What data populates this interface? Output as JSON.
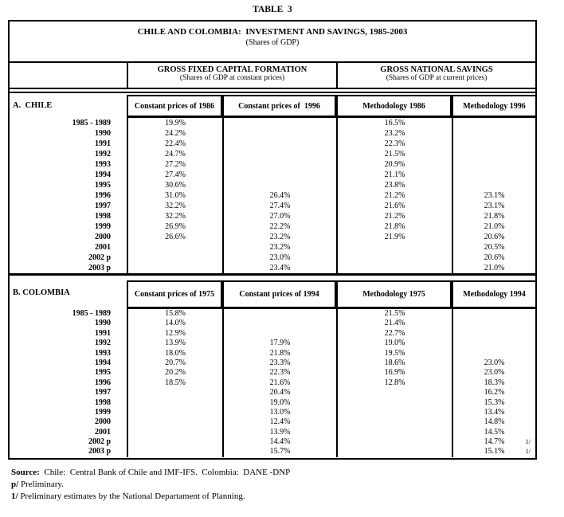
{
  "caption": "TABLE  3",
  "table": {
    "title": "CHILE AND COLOMBIA:  INVESTMENT AND SAVINGS, 1985-2003",
    "subtitle": "(Shares of GDP)",
    "group_headers": [
      {
        "title": "GROSS FIXED CAPITAL FORMATION",
        "subtitle": "(Shares of GDP at constant prices)"
      },
      {
        "title": "GROSS NATIONAL SAVINGS",
        "subtitle": "(Shares of GDP at current prices)"
      }
    ],
    "sections": [
      {
        "label": "A.  CHILE",
        "columns": [
          "Constant prices of 1986",
          "Constant prices of  1996",
          "Methodology 1986",
          "Methodology 1996"
        ],
        "rows": [
          {
            "year": "1985 - 1989",
            "c1": "19.9%",
            "c2": "",
            "c3": "16.5%",
            "c4": "",
            "note": ""
          },
          {
            "year": "1990",
            "c1": "24.2%",
            "c2": "",
            "c3": "23.2%",
            "c4": "",
            "note": ""
          },
          {
            "year": "1991",
            "c1": "22.4%",
            "c2": "",
            "c3": "22.3%",
            "c4": "",
            "note": ""
          },
          {
            "year": "1992",
            "c1": "24.7%",
            "c2": "",
            "c3": "21.5%",
            "c4": "",
            "note": ""
          },
          {
            "year": "1993",
            "c1": "27.2%",
            "c2": "",
            "c3": "20.9%",
            "c4": "",
            "note": ""
          },
          {
            "year": "1994",
            "c1": "27.4%",
            "c2": "",
            "c3": "21.1%",
            "c4": "",
            "note": ""
          },
          {
            "year": "1995",
            "c1": "30.6%",
            "c2": "",
            "c3": "23.8%",
            "c4": "",
            "note": ""
          },
          {
            "year": "1996",
            "c1": "31.0%",
            "c2": "26.4%",
            "c3": "21.2%",
            "c4": "23.1%",
            "note": ""
          },
          {
            "year": "1997",
            "c1": "32.2%",
            "c2": "27.4%",
            "c3": "21.6%",
            "c4": "23.1%",
            "note": ""
          },
          {
            "year": "1998",
            "c1": "32.2%",
            "c2": "27.0%",
            "c3": "21.2%",
            "c4": "21.8%",
            "note": ""
          },
          {
            "year": "1999",
            "c1": "26.9%",
            "c2": "22.2%",
            "c3": "21.8%",
            "c4": "21.0%",
            "note": ""
          },
          {
            "year": "2000",
            "c1": "26.6%",
            "c2": "23.2%",
            "c3": "21.9%",
            "c4": "20.6%",
            "note": ""
          },
          {
            "year": "2001",
            "c1": "",
            "c2": "23.2%",
            "c3": "",
            "c4": "20.5%",
            "note": ""
          },
          {
            "year": "2002 p",
            "c1": "",
            "c2": "23.0%",
            "c3": "",
            "c4": "20.6%",
            "note": ""
          },
          {
            "year": "2003 p",
            "c1": "",
            "c2": "23.4%",
            "c3": "",
            "c4": "21.0%",
            "note": ""
          }
        ]
      },
      {
        "label": "B. COLOMBIA",
        "columns": [
          "Constant prices of 1975",
          "Constant prices of 1994",
          "Methodology 1975",
          "Methodology 1994"
        ],
        "rows": [
          {
            "year": "1985 - 1989",
            "c1": "15.8%",
            "c2": "",
            "c3": "21.5%",
            "c4": "",
            "note": ""
          },
          {
            "year": "1990",
            "c1": "14.0%",
            "c2": "",
            "c3": "21.4%",
            "c4": "",
            "note": ""
          },
          {
            "year": "1991",
            "c1": "12.9%",
            "c2": "",
            "c3": "22.7%",
            "c4": "",
            "note": ""
          },
          {
            "year": "1992",
            "c1": "13.9%",
            "c2": "17.9%",
            "c3": "19.0%",
            "c4": "",
            "note": ""
          },
          {
            "year": "1993",
            "c1": "18.0%",
            "c2": "21.8%",
            "c3": "19.5%",
            "c4": "",
            "note": ""
          },
          {
            "year": "1994",
            "c1": "20.7%",
            "c2": "23.3%",
            "c3": "18.6%",
            "c4": "23.0%",
            "note": ""
          },
          {
            "year": "1995",
            "c1": "20.2%",
            "c2": "22.3%",
            "c3": "16.9%",
            "c4": "23.0%",
            "note": ""
          },
          {
            "year": "1996",
            "c1": "18.5%",
            "c2": "21.6%",
            "c3": "12.8%",
            "c4": "18.3%",
            "note": ""
          },
          {
            "year": "1997",
            "c1": "",
            "c2": "20.4%",
            "c3": "",
            "c4": "16.2%",
            "note": ""
          },
          {
            "year": "1998",
            "c1": "",
            "c2": "19.0%",
            "c3": "",
            "c4": "15.3%",
            "note": ""
          },
          {
            "year": "1999",
            "c1": "",
            "c2": "13.0%",
            "c3": "",
            "c4": "13.4%",
            "note": ""
          },
          {
            "year": "2000",
            "c1": "",
            "c2": "12.4%",
            "c3": "",
            "c4": "14.8%",
            "note": ""
          },
          {
            "year": "2001",
            "c1": "",
            "c2": "13.9%",
            "c3": "",
            "c4": "14.5%",
            "note": ""
          },
          {
            "year": "2002 p",
            "c1": "",
            "c2": "14.4%",
            "c3": "",
            "c4": "14.7%",
            "note": "1/"
          },
          {
            "year": "2003 p",
            "c1": "",
            "c2": "15.7%",
            "c3": "",
            "c4": "15.1%",
            "note": "1/"
          }
        ]
      }
    ]
  },
  "notes": {
    "source_label": "Source:",
    "source_text": "  Chile:  Central Bank of Chile and IMF-IFS.  Colombia:  DANE -DNP",
    "note_p_label": "p/",
    "note_p_text": " Preliminary.",
    "note_1_label": "1/",
    "note_1_text": " Preliminary estimates by the National Departament of Planning."
  }
}
